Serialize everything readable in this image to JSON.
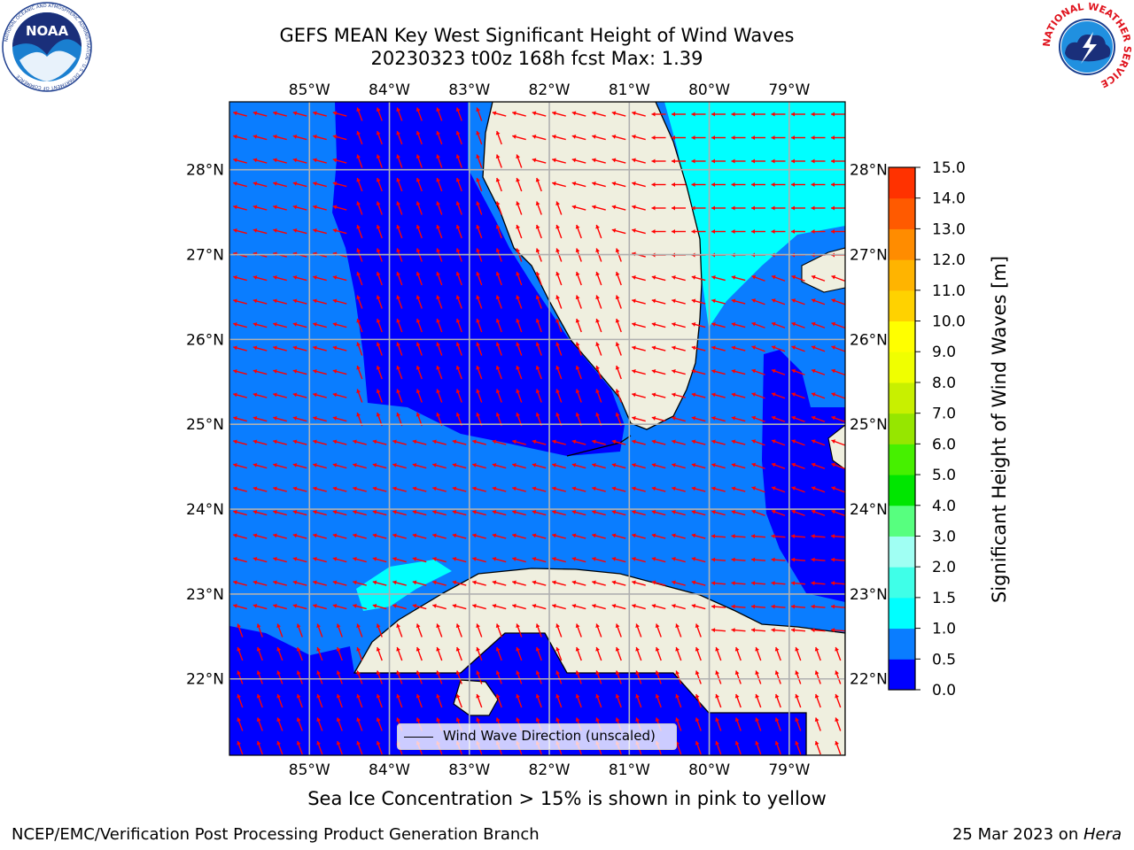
{
  "title": {
    "line1": "GEFS MEAN Key West Significant Height of Wind Waves",
    "line2": "20230323 t00z 168h fcst   Max: 1.39"
  },
  "map": {
    "lon_ticks": [
      "85°W",
      "84°W",
      "83°W",
      "82°W",
      "81°W",
      "80°W",
      "79°W"
    ],
    "lat_ticks": [
      "28°N",
      "27°N",
      "26°N",
      "25°N",
      "24°N",
      "23°N",
      "22°N"
    ],
    "lon_range": [
      -86.0,
      -78.3
    ],
    "lat_range": [
      21.1,
      28.8
    ],
    "gridlines": true,
    "land_color": "#efefdf",
    "arrow_color": "#ff0000"
  },
  "legend": {
    "label": "Wind Wave Direction (unscaled)",
    "placement": "bottom-center"
  },
  "colorbar": {
    "label": "Significant Height of Wind Waves [m]",
    "ticks": [
      "0.0",
      "0.5",
      "1.0",
      "1.5",
      "2.0",
      "3.0",
      "4.0",
      "5.0",
      "6.0",
      "7.0",
      "8.0",
      "9.0",
      "10.0",
      "11.0",
      "12.0",
      "13.0",
      "14.0",
      "15.0"
    ],
    "colors": [
      "#0000ff",
      "#0a7dff",
      "#00ffff",
      "#3fffe8",
      "#a0fff3",
      "#57ff7f",
      "#00e600",
      "#46f000",
      "#96e600",
      "#c8f000",
      "#f0ff00",
      "#ffff00",
      "#ffd200",
      "#ffb400",
      "#ff8c00",
      "#ff5a00",
      "#ff3200"
    ]
  },
  "caption": "Sea Ice Concentration > 15% is shown in pink to yellow",
  "footer": {
    "left": "NCEP/EMC/Verification Post Processing Product Generation Branch",
    "right_date": "25 Mar 2023 on ",
    "right_machine": "Hera"
  },
  "logos": {
    "noaa_text": "NOAA",
    "noaa_ring": "NATIONAL OCEANIC AND ATMOSPHERIC ADMINISTRATION · U.S. DEPARTMENT OF COMMERCE",
    "nws_ring": "NATIONAL WEATHER SERVICE"
  }
}
